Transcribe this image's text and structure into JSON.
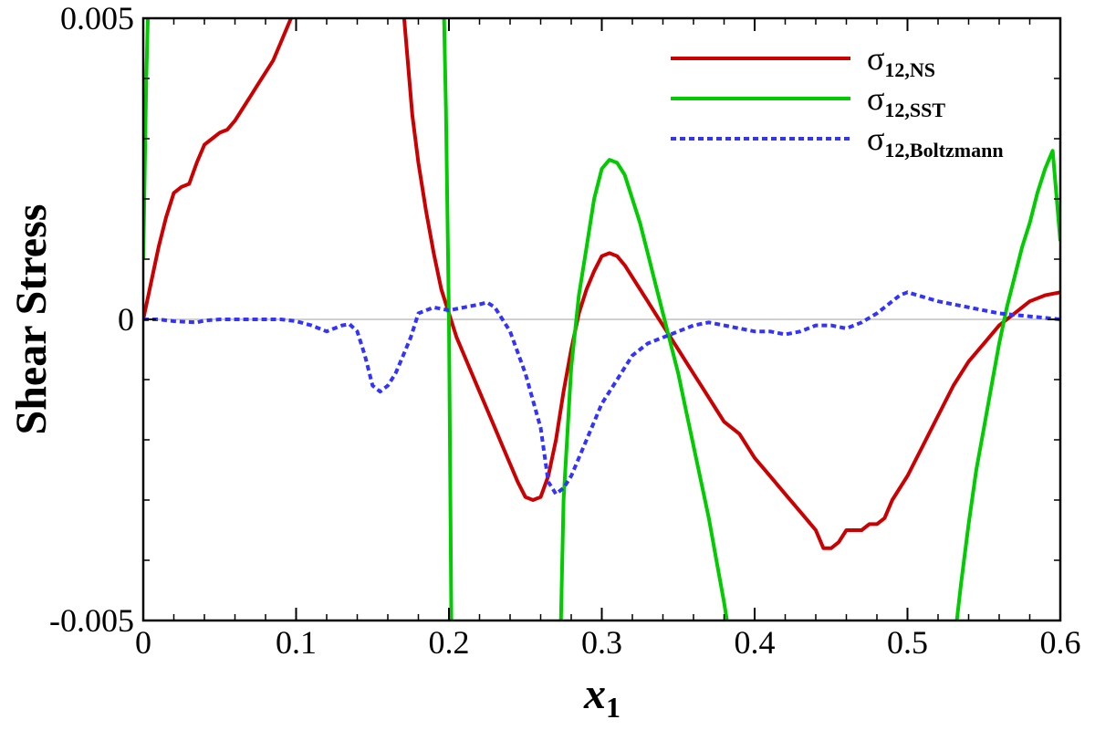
{
  "chart_data": {
    "type": "line",
    "xlabel": "x",
    "xlabel_subscript": "1",
    "ylabel": "Shear Stress",
    "xlim": [
      0,
      0.6
    ],
    "ylim": [
      -0.005,
      0.005
    ],
    "x_ticks": [
      "0",
      "0.1",
      "0.2",
      "0.3",
      "0.4",
      "0.5",
      "0.6"
    ],
    "x_tick_values": [
      0,
      0.1,
      0.2,
      0.3,
      0.4,
      0.5,
      0.6
    ],
    "y_ticks": [
      "-0.005",
      "0",
      "0.005"
    ],
    "y_tick_values": [
      -0.005,
      0,
      0.005
    ],
    "zero_line": true,
    "legend_position": "top-right",
    "series": [
      {
        "name": "σ",
        "name_subscript": "12,NS",
        "color": "#cc0000",
        "dash": "solid",
        "x": [
          0,
          0.005,
          0.01,
          0.015,
          0.02,
          0.025,
          0.03,
          0.035,
          0.04,
          0.045,
          0.05,
          0.055,
          0.06,
          0.065,
          0.07,
          0.075,
          0.08,
          0.085,
          0.09,
          0.095,
          0.1,
          0.17,
          0.173,
          0.176,
          0.18,
          0.185,
          0.19,
          0.195,
          0.2,
          0.205,
          0.21,
          0.215,
          0.22,
          0.225,
          0.23,
          0.235,
          0.24,
          0.245,
          0.25,
          0.255,
          0.26,
          0.265,
          0.27,
          0.275,
          0.28,
          0.285,
          0.29,
          0.295,
          0.3,
          0.305,
          0.31,
          0.315,
          0.32,
          0.325,
          0.33,
          0.335,
          0.34,
          0.345,
          0.35,
          0.355,
          0.36,
          0.365,
          0.37,
          0.375,
          0.38,
          0.385,
          0.39,
          0.395,
          0.4,
          0.41,
          0.42,
          0.43,
          0.44,
          0.445,
          0.45,
          0.455,
          0.46,
          0.465,
          0.47,
          0.475,
          0.48,
          0.485,
          0.49,
          0.5,
          0.51,
          0.52,
          0.53,
          0.54,
          0.55,
          0.56,
          0.57,
          0.58,
          0.59,
          0.6
        ],
        "y": [
          0,
          0.0006,
          0.0012,
          0.0017,
          0.0021,
          0.0022,
          0.00225,
          0.0026,
          0.0029,
          0.003,
          0.0031,
          0.00315,
          0.0033,
          0.0035,
          0.0037,
          0.0039,
          0.0041,
          0.0043,
          0.0046,
          0.0049,
          0.0052,
          0.0052,
          0.0043,
          0.0034,
          0.0026,
          0.0018,
          0.0011,
          0.0005,
          0.0001,
          -0.0003,
          -0.0006,
          -0.0009,
          -0.0012,
          -0.0015,
          -0.0018,
          -0.0021,
          -0.0024,
          -0.0027,
          -0.00295,
          -0.003,
          -0.00295,
          -0.0026,
          -0.002,
          -0.0012,
          -0.0005,
          0.0001,
          0.0005,
          0.0008,
          0.00105,
          0.0011,
          0.00105,
          0.0009,
          0.0007,
          0.0005,
          0.0003,
          0.0001,
          -0.0001,
          -0.0003,
          -0.0005,
          -0.0007,
          -0.0009,
          -0.0011,
          -0.0013,
          -0.0015,
          -0.0017,
          -0.0018,
          -0.0019,
          -0.0021,
          -0.0023,
          -0.0026,
          -0.0029,
          -0.0032,
          -0.0035,
          -0.0038,
          -0.0038,
          -0.0037,
          -0.0035,
          -0.0035,
          -0.0035,
          -0.0034,
          -0.0034,
          -0.0033,
          -0.003,
          -0.0026,
          -0.0021,
          -0.0016,
          -0.0011,
          -0.0007,
          -0.0004,
          -0.0001,
          0.0001,
          0.0003,
          0.0004,
          0.00045
        ]
      },
      {
        "name": "σ",
        "name_subscript": "12,SST",
        "color": "#00cc00",
        "dash": "solid",
        "x": [
          0,
          0.002,
          0.004,
          0.006,
          0.196,
          0.198,
          0.2,
          0.202,
          0.272,
          0.275,
          0.28,
          0.285,
          0.29,
          0.295,
          0.3,
          0.305,
          0.31,
          0.315,
          0.32,
          0.325,
          0.33,
          0.335,
          0.34,
          0.345,
          0.35,
          0.355,
          0.36,
          0.365,
          0.37,
          0.375,
          0.38,
          0.385,
          0.53,
          0.535,
          0.54,
          0.545,
          0.55,
          0.555,
          0.56,
          0.565,
          0.57,
          0.575,
          0.58,
          0.585,
          0.59,
          0.595,
          0.6
        ],
        "y": [
          0.001,
          0.004,
          0.006,
          0.007,
          0.006,
          0.0035,
          0.0,
          -0.0065,
          -0.0065,
          -0.003,
          -0.0008,
          0.0004,
          0.0012,
          0.002,
          0.0025,
          0.00265,
          0.0026,
          0.0024,
          0.002,
          0.0016,
          0.0011,
          0.0006,
          0.0001,
          -0.0004,
          -0.0009,
          -0.0015,
          -0.0021,
          -0.0027,
          -0.0033,
          -0.004,
          -0.0047,
          -0.0055,
          -0.0055,
          -0.0044,
          -0.0034,
          -0.0025,
          -0.0018,
          -0.0011,
          -0.0004,
          0.0002,
          0.0007,
          0.0012,
          0.0016,
          0.0021,
          0.0025,
          0.0028,
          0.0013
        ]
      },
      {
        "name": "σ",
        "name_subscript": "12,Boltzmann",
        "color": "#3333ff",
        "dash": "dotted",
        "x": [
          0,
          0.01,
          0.02,
          0.035,
          0.04,
          0.05,
          0.07,
          0.09,
          0.1,
          0.11,
          0.12,
          0.13,
          0.135,
          0.14,
          0.145,
          0.15,
          0.155,
          0.16,
          0.165,
          0.17,
          0.175,
          0.18,
          0.19,
          0.2,
          0.21,
          0.22,
          0.225,
          0.23,
          0.24,
          0.25,
          0.26,
          0.265,
          0.27,
          0.275,
          0.28,
          0.29,
          0.3,
          0.31,
          0.32,
          0.33,
          0.34,
          0.35,
          0.36,
          0.37,
          0.38,
          0.39,
          0.4,
          0.41,
          0.42,
          0.43,
          0.44,
          0.45,
          0.46,
          0.47,
          0.48,
          0.49,
          0.495,
          0.5,
          0.52,
          0.54,
          0.56,
          0.58,
          0.6
        ],
        "y": [
          0,
          0,
          -3e-05,
          -5e-05,
          -2e-05,
          0,
          0,
          0,
          -3e-05,
          -0.0001,
          -0.0002,
          -0.0001,
          -8e-05,
          -0.0002,
          -0.0006,
          -0.0011,
          -0.0012,
          -0.0011,
          -0.0009,
          -0.0006,
          -0.0003,
          0.0001,
          0.0002,
          0.00015,
          0.0002,
          0.00025,
          0.00028,
          0.0002,
          -0.0002,
          -0.0009,
          -0.0018,
          -0.0027,
          -0.0029,
          -0.0028,
          -0.0026,
          -0.002,
          -0.0014,
          -0.001,
          -0.0006,
          -0.0004,
          -0.0003,
          -0.0002,
          -0.0001,
          -5e-05,
          -0.0001,
          -0.00015,
          -0.0002,
          -0.0002,
          -0.00025,
          -0.0002,
          -0.0001,
          -0.0001,
          -0.00015,
          -5e-05,
          0.0001,
          0.0003,
          0.0004,
          0.00045,
          0.0003,
          0.0002,
          0.0001,
          5e-05,
          0
        ]
      }
    ]
  }
}
